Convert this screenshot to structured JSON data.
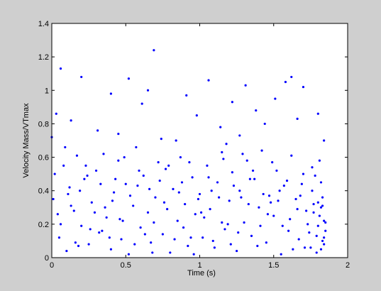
{
  "chart_data": {
    "type": "scatter",
    "xlabel": "Time (s)",
    "ylabel": "Velocity Mass/VTmax",
    "color": "#0000ff",
    "xlim": [
      0,
      2
    ],
    "xticks": [
      0,
      0.5,
      1,
      1.5,
      2
    ],
    "ylim": [
      0,
      1.4
    ],
    "yticks": [
      0,
      0.2,
      0.4,
      0.6,
      0.8,
      1,
      1.2,
      1.4
    ],
    "x": [
      0.01,
      0.03,
      0.05,
      0.08,
      0.1,
      0.12,
      0.15,
      0.17,
      0.2,
      0.22,
      0.25,
      0.27,
      0.3,
      0.32,
      0.35,
      0.37,
      0.4,
      0.42,
      0.45,
      0.47,
      0.5,
      0.52,
      0.55,
      0.57,
      0.6,
      0.62,
      0.65,
      0.67,
      0.7,
      0.72,
      0.75,
      0.77,
      0.8,
      0.82,
      0.85,
      0.87,
      0.9,
      0.92,
      0.95,
      0.97,
      1.0,
      1.02,
      1.05,
      1.07,
      1.1,
      1.12,
      1.15,
      1.17,
      1.2,
      1.22,
      1.25,
      1.27,
      1.3,
      1.32,
      1.35,
      1.37,
      1.4,
      1.42,
      1.45,
      1.47,
      1.5,
      1.52,
      1.55,
      1.57,
      1.6,
      1.62,
      1.65,
      1.67,
      1.7,
      1.72,
      1.75,
      1.77,
      1.8,
      1.82,
      1.84,
      1.83,
      1.81,
      1.79,
      1.76,
      1.74,
      0.02,
      0.06,
      0.09,
      0.13,
      0.16,
      0.19,
      0.23,
      0.26,
      0.29,
      0.33,
      0.36,
      0.39,
      0.43,
      0.46,
      0.49,
      0.53,
      0.56,
      0.59,
      0.63,
      0.66,
      0.69,
      0.73,
      0.76,
      0.79,
      0.83,
      0.86,
      0.89,
      0.93,
      0.96,
      0.99,
      1.03,
      1.06,
      1.09,
      1.13,
      1.16,
      1.19,
      1.23,
      1.26,
      1.29,
      1.33,
      1.36,
      1.39,
      1.43,
      1.46,
      1.49,
      1.53,
      1.56,
      1.59,
      1.63,
      1.66,
      1.69,
      1.73,
      1.76,
      1.79,
      1.82,
      1.84,
      1.85,
      1.83,
      1.81,
      1.78,
      0.0,
      0.06,
      0.13,
      0.2,
      0.31,
      0.4,
      0.52,
      0.61,
      0.65,
      0.69,
      0.84,
      0.91,
      0.98,
      1.06,
      1.14,
      1.22,
      1.31,
      1.38,
      1.51,
      1.58,
      1.62,
      1.66,
      1.7,
      1.8,
      1.84,
      0.45,
      0.74,
      1.18,
      1.44,
      1.27,
      0.04,
      0.11,
      0.18,
      0.24,
      0.34,
      0.41,
      0.48,
      0.58,
      0.68,
      0.78,
      0.88,
      0.94,
      1.01,
      1.08,
      1.15,
      1.21,
      1.28,
      1.34,
      1.41,
      1.48,
      1.54,
      1.61,
      1.68,
      1.71,
      1.77,
      1.83,
      1.85,
      1.84,
      1.82,
      1.8
    ],
    "values": [
      0.35,
      0.86,
      0.12,
      0.55,
      0.04,
      0.42,
      0.28,
      0.61,
      0.19,
      0.47,
      0.08,
      0.33,
      0.52,
      0.15,
      0.62,
      0.24,
      0.05,
      0.39,
      0.58,
      0.11,
      0.44,
      0.02,
      0.31,
      0.66,
      0.18,
      0.49,
      0.27,
      0.09,
      0.36,
      0.57,
      0.14,
      0.53,
      0.03,
      0.41,
      0.22,
      0.6,
      0.32,
      0.07,
      0.48,
      0.26,
      0.38,
      0.12,
      0.55,
      0.29,
      0.06,
      0.45,
      0.63,
      0.17,
      0.34,
      0.51,
      0.04,
      0.4,
      0.21,
      0.58,
      0.13,
      0.47,
      0.3,
      0.64,
      0.09,
      0.37,
      0.25,
      0.52,
      0.02,
      0.43,
      0.16,
      0.61,
      0.35,
      0.11,
      0.5,
      0.28,
      0.06,
      0.32,
      0.19,
      0.45,
      0.22,
      0.1,
      0.58,
      0.03,
      0.4,
      0.15,
      0.5,
      0.2,
      0.66,
      0.31,
      0.09,
      0.4,
      0.55,
      0.17,
      0.27,
      0.44,
      0.3,
      0.12,
      0.47,
      0.23,
      0.6,
      0.37,
      0.08,
      0.52,
      0.14,
      0.41,
      0.21,
      0.46,
      0.33,
      0.55,
      0.11,
      0.39,
      0.18,
      0.57,
      0.02,
      0.35,
      0.24,
      0.48,
      0.1,
      0.36,
      0.59,
      0.2,
      0.43,
      0.15,
      0.62,
      0.32,
      0.52,
      0.07,
      0.38,
      0.26,
      0.57,
      0.34,
      0.19,
      0.46,
      0.05,
      0.29,
      0.44,
      0.2,
      0.54,
      0.13,
      0.3,
      0.08,
      0.16,
      0.36,
      0.25,
      0.49,
      0.72,
      1.13,
      0.82,
      1.08,
      0.76,
      0.98,
      1.07,
      0.92,
      1.0,
      1.24,
      0.7,
      0.97,
      0.85,
      1.06,
      0.78,
      0.93,
      1.03,
      0.88,
      0.95,
      1.05,
      1.08,
      0.83,
      1.02,
      0.86,
      0.7,
      0.74,
      0.71,
      0.68,
      0.8,
      0.73,
      0.26,
      0.38,
      0.07,
      0.49,
      0.16,
      0.34,
      0.22,
      0.43,
      0.03,
      0.29,
      0.45,
      0.12,
      0.27,
      0.4,
      0.21,
      0.08,
      0.36,
      0.47,
      0.19,
      0.33,
      0.4,
      0.23,
      0.37,
      0.06,
      0.27,
      0.31,
      0.21,
      0.12,
      0.05,
      0.33
    ]
  }
}
